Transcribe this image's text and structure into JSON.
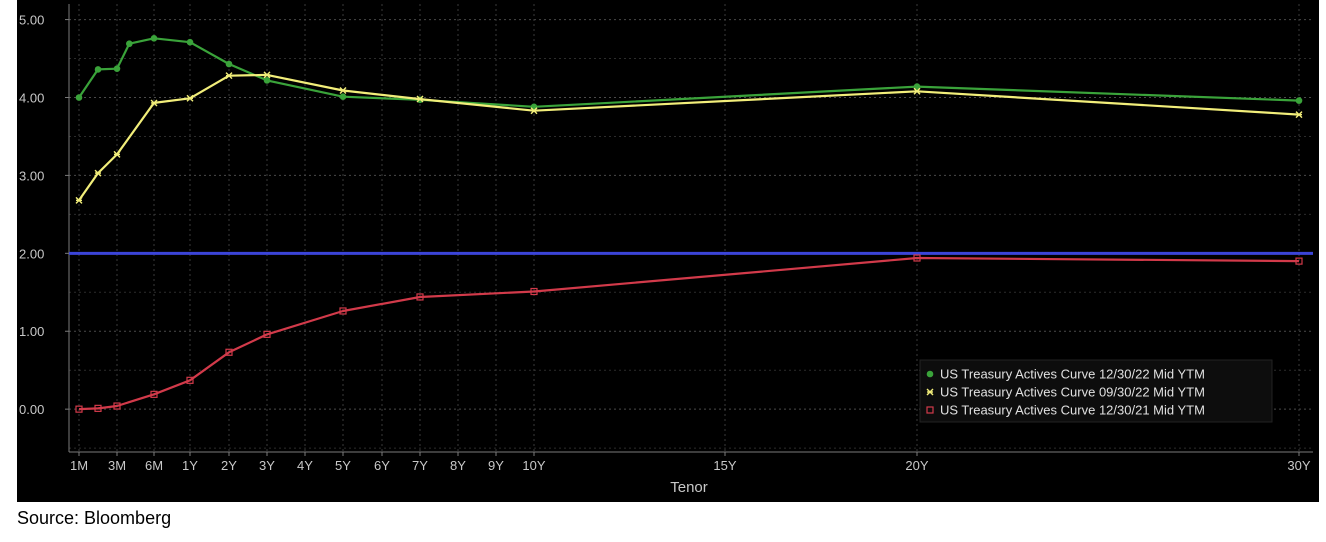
{
  "chart_data": {
    "type": "line",
    "title": "",
    "xlabel": "Tenor",
    "ylabel": "",
    "ylim": [
      -0.55,
      5.2
    ],
    "y_ticks": [
      "0.00",
      "1.00",
      "2.00",
      "3.00",
      "4.00",
      "5.00"
    ],
    "y_tick_values": [
      0,
      1,
      2,
      3,
      4,
      5
    ],
    "x_ticks": [
      "1M",
      "3M",
      "6M",
      "1Y",
      "2Y",
      "3Y",
      "4Y",
      "5Y",
      "6Y",
      "7Y",
      "8Y",
      "9Y",
      "10Y",
      "15Y",
      "20Y",
      "30Y"
    ],
    "x_tick_years": [
      0.0833,
      0.25,
      0.5,
      1,
      2,
      3,
      4,
      5,
      6,
      7,
      8,
      9,
      10,
      15,
      20,
      30
    ],
    "x_categories": [
      "1M",
      "2M",
      "3M",
      "4M",
      "6M",
      "1Y",
      "2Y",
      "3Y",
      "5Y",
      "7Y",
      "10Y",
      "20Y",
      "30Y"
    ],
    "x_years": [
      0.0833,
      0.1667,
      0.25,
      0.3333,
      0.5,
      1,
      2,
      3,
      5,
      7,
      10,
      20,
      30
    ],
    "grid": true,
    "legend_position": "bottom-right",
    "series": [
      {
        "name": "US Treasury Actives Curve 12/30/22 Mid YTM",
        "color": "#3aa33a",
        "marker": "dot",
        "values": [
          4.0,
          4.36,
          4.37,
          4.69,
          4.76,
          4.71,
          4.43,
          4.22,
          4.01,
          3.97,
          3.88,
          4.14,
          3.96
        ]
      },
      {
        "name": "US Treasury Actives Curve 09/30/22 Mid YTM",
        "color": "#f2ee7a",
        "marker": "star",
        "values": [
          2.68,
          3.03,
          3.27,
          null,
          3.93,
          3.99,
          4.28,
          4.29,
          4.09,
          3.98,
          3.83,
          4.08,
          3.78
        ]
      },
      {
        "name": "US Treasury Actives Curve 12/30/21 Mid YTM",
        "color": "#d23a4a",
        "marker": "square",
        "values": [
          0.0,
          0.01,
          0.04,
          null,
          0.19,
          0.37,
          0.73,
          0.96,
          1.26,
          1.44,
          1.51,
          1.94,
          1.9
        ]
      }
    ],
    "reference_lines": [
      {
        "y": 2.0,
        "color": "#3b44d8"
      }
    ]
  },
  "source_note": "Source: Bloomberg"
}
